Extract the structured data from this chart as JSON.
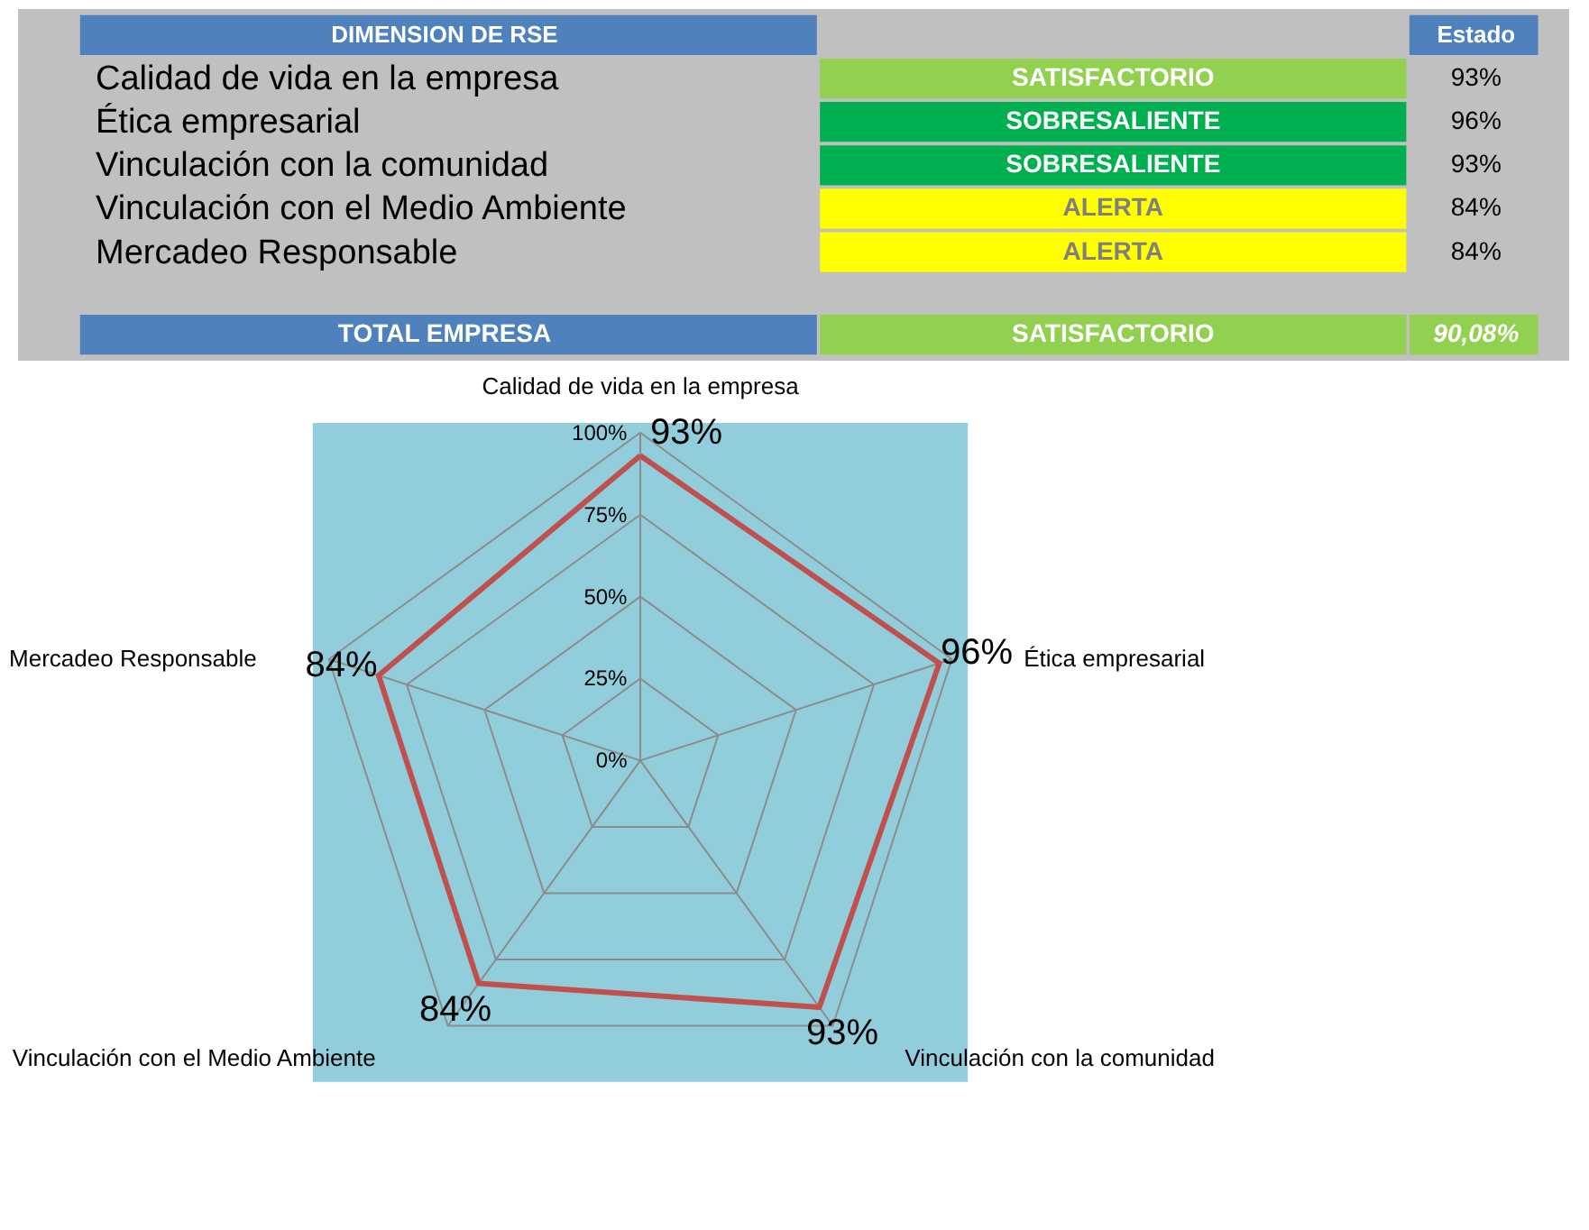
{
  "chart_data": [
    {
      "type": "other",
      "title": "DIMENSION DE RSE",
      "y_categories": [
        "Calidad de vida en la empresa",
        "Ética empresarial",
        "Vinculación con la comunidad",
        "Vinculación con el Medio Ambiente",
        "Mercadeo Responsable"
      ],
      "cell_labels": [
        [
          "SATISFACTORIO",
          "93%"
        ],
        [
          "SOBRESALIENTE",
          "96%"
        ],
        [
          "SOBRESALIENTE",
          "93%"
        ],
        [
          "ALERTA",
          "84%"
        ],
        [
          "ALERTA",
          "84%"
        ]
      ],
      "colors": [
        "#92d050",
        "#00b050",
        "#00b050",
        "#ffff00",
        "#ffff00"
      ],
      "annotations": [
        "Estado",
        "TOTAL EMPRESA",
        "SATISFACTORIO",
        "90,08%"
      ]
    },
    {
      "type": "radar",
      "categories": [
        "Calidad de vida en la empresa",
        "Ética empresarial",
        "Vinculación con la comunidad",
        "Vinculación con el Medio Ambiente",
        "Mercadeo Responsable"
      ],
      "series": [
        {
          "color": "#c0504d",
          "values": [
            93,
            96,
            93,
            84,
            84
          ]
        }
      ],
      "value_labels": [
        "93%",
        "96%",
        "93%",
        "84%",
        "84%"
      ],
      "ylim": [
        0,
        100
      ],
      "yticks": [
        {
          "value": 0,
          "label": "0%"
        },
        {
          "value": 25,
          "label": "25%"
        },
        {
          "value": 50,
          "label": "50%"
        },
        {
          "value": 75,
          "label": "75%"
        },
        {
          "value": 100,
          "label": "100%"
        }
      ],
      "grid": true
    }
  ]
}
